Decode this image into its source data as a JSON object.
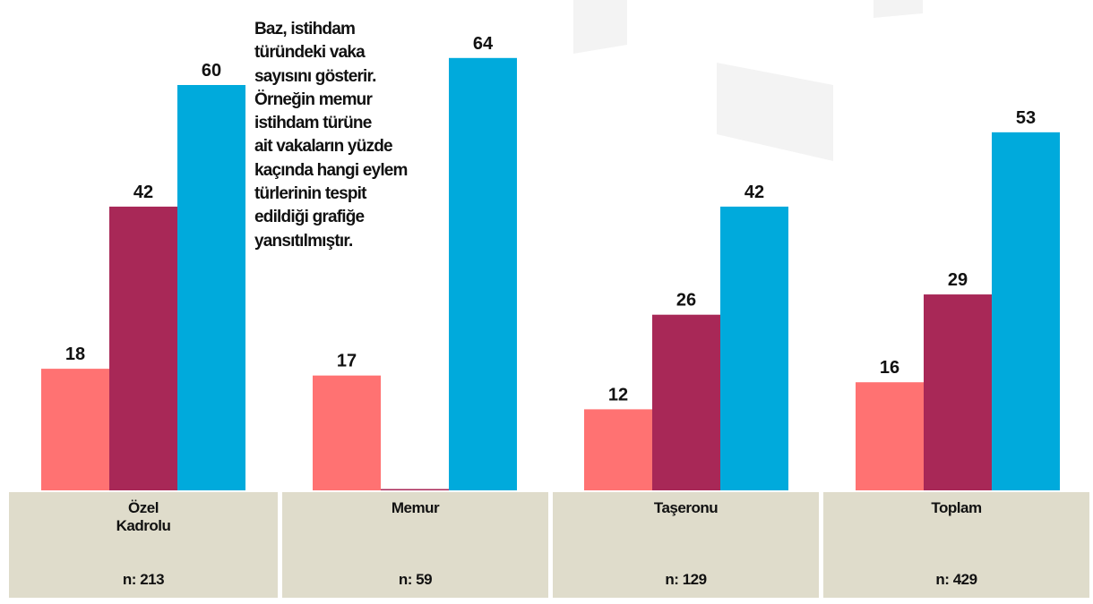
{
  "chart_data": {
    "type": "bar",
    "annotation": [
      "Baz, istihdam",
      "türündeki vaka",
      "sayısını gösterir.",
      "Örneğin memur",
      "istihdam türüne",
      "ait vakaların yüzde",
      "kaçında hangi eylem",
      "türlerinin tespit",
      "edildiği grafiğe",
      "yansıtılmıştır."
    ],
    "categories": [
      "Özel Kadrolu",
      "Memur",
      "Taşeronu",
      "Toplam"
    ],
    "sample_sizes": [
      "n: 213",
      "n: 59",
      "n: 129",
      "n: 429"
    ],
    "series": [
      {
        "color": "#ff7272",
        "values": [
          18,
          17,
          12,
          16
        ]
      },
      {
        "color": "#a82857",
        "values": [
          42,
          0,
          26,
          29
        ],
        "value_labels": [
          "42",
          null,
          "26",
          "29"
        ]
      },
      {
        "color": "#00aadc",
        "values": [
          60,
          64,
          42,
          53
        ]
      }
    ],
    "ylim": [
      0,
      70
    ]
  }
}
